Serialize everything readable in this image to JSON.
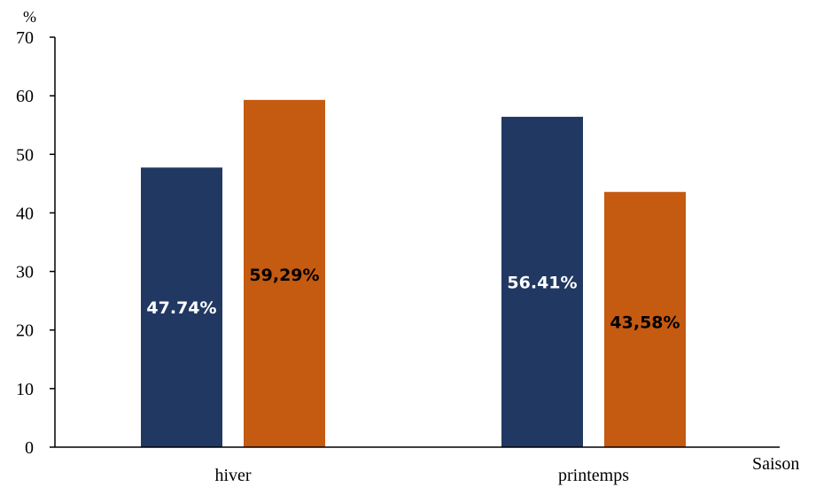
{
  "chart_data": {
    "type": "bar",
    "ylabel": "%",
    "xlabel": "Saison",
    "ylim": [
      0,
      70
    ],
    "yticks": [
      0,
      10,
      20,
      30,
      40,
      50,
      60,
      70
    ],
    "categories": [
      "hiver",
      "printemps"
    ],
    "grid": false,
    "legend": "none",
    "series": [
      {
        "color": "#213862",
        "label_color": "#ffffff",
        "values": [
          47.74,
          56.41
        ],
        "labels": [
          "47.74%",
          "56.41%"
        ]
      },
      {
        "color": "#c55a11",
        "label_color": "#000000",
        "values": [
          59.29,
          43.58
        ],
        "labels": [
          "59,29%",
          "43,58%"
        ]
      }
    ]
  }
}
